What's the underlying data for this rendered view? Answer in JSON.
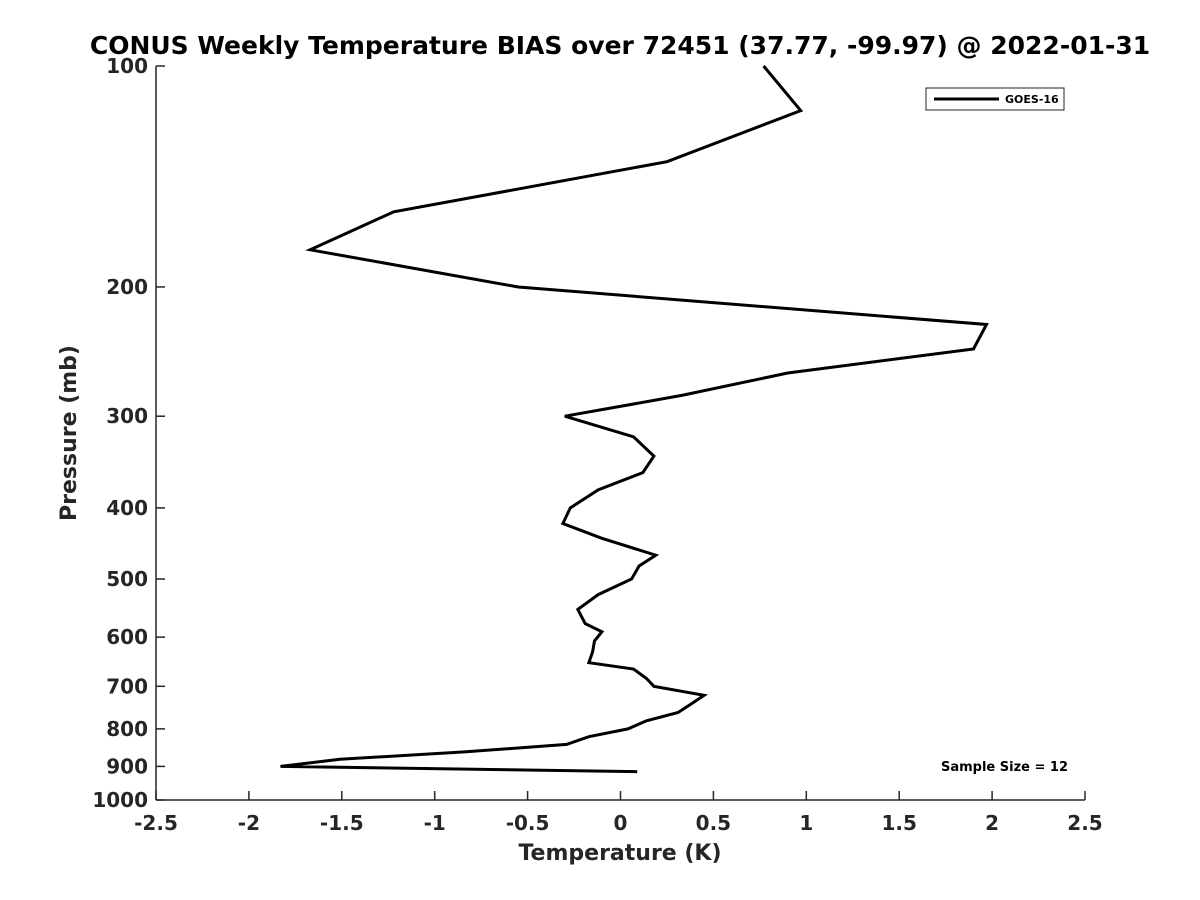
{
  "chart_data": {
    "type": "line",
    "title": "CONUS Weekly Temperature BIAS over 72451 (37.77, -99.97) @ 2022-01-31",
    "xlabel": "Temperature (K)",
    "ylabel": "Pressure (mb)",
    "xlim": [
      -2.5,
      2.5
    ],
    "ylim": [
      100,
      1000
    ],
    "y_scale": "log",
    "y_reversed": true,
    "grid": false,
    "legend_position": "top-right",
    "x_ticks": [
      "-2.5",
      "-2",
      "-1.5",
      "-1",
      "-0.5",
      "0",
      "0.5",
      "1",
      "1.5",
      "2",
      "2.5"
    ],
    "y_ticks": [
      "100",
      "200",
      "300",
      "400",
      "500",
      "600",
      "700",
      "800",
      "900",
      "1000"
    ],
    "annotation": "Sample Size = 12",
    "series": [
      {
        "name": "GOES-16",
        "color": "#000000",
        "points": [
          {
            "x": 0.77,
            "y": 100
          },
          {
            "x": 0.97,
            "y": 115
          },
          {
            "x": 0.25,
            "y": 135
          },
          {
            "x": -1.22,
            "y": 158
          },
          {
            "x": -1.67,
            "y": 178
          },
          {
            "x": -0.55,
            "y": 200
          },
          {
            "x": 1.97,
            "y": 225
          },
          {
            "x": 1.9,
            "y": 243
          },
          {
            "x": 0.9,
            "y": 262
          },
          {
            "x": 0.33,
            "y": 281
          },
          {
            "x": -0.3,
            "y": 300
          },
          {
            "x": 0.07,
            "y": 320
          },
          {
            "x": 0.18,
            "y": 340
          },
          {
            "x": 0.12,
            "y": 358
          },
          {
            "x": -0.12,
            "y": 378
          },
          {
            "x": -0.27,
            "y": 400
          },
          {
            "x": -0.31,
            "y": 420
          },
          {
            "x": -0.1,
            "y": 440
          },
          {
            "x": 0.19,
            "y": 464
          },
          {
            "x": 0.1,
            "y": 480
          },
          {
            "x": 0.06,
            "y": 500
          },
          {
            "x": -0.12,
            "y": 525
          },
          {
            "x": -0.23,
            "y": 550
          },
          {
            "x": -0.19,
            "y": 575
          },
          {
            "x": -0.1,
            "y": 590
          },
          {
            "x": -0.14,
            "y": 607
          },
          {
            "x": -0.15,
            "y": 628
          },
          {
            "x": -0.17,
            "y": 650
          },
          {
            "x": 0.07,
            "y": 663
          },
          {
            "x": 0.14,
            "y": 683
          },
          {
            "x": 0.18,
            "y": 700
          },
          {
            "x": 0.45,
            "y": 720
          },
          {
            "x": 0.38,
            "y": 740
          },
          {
            "x": 0.31,
            "y": 760
          },
          {
            "x": 0.14,
            "y": 780
          },
          {
            "x": 0.04,
            "y": 800
          },
          {
            "x": -0.17,
            "y": 820
          },
          {
            "x": -0.29,
            "y": 840
          },
          {
            "x": -0.84,
            "y": 860
          },
          {
            "x": -1.51,
            "y": 880
          },
          {
            "x": -1.83,
            "y": 900
          },
          {
            "x": 0.09,
            "y": 915
          }
        ]
      }
    ]
  }
}
